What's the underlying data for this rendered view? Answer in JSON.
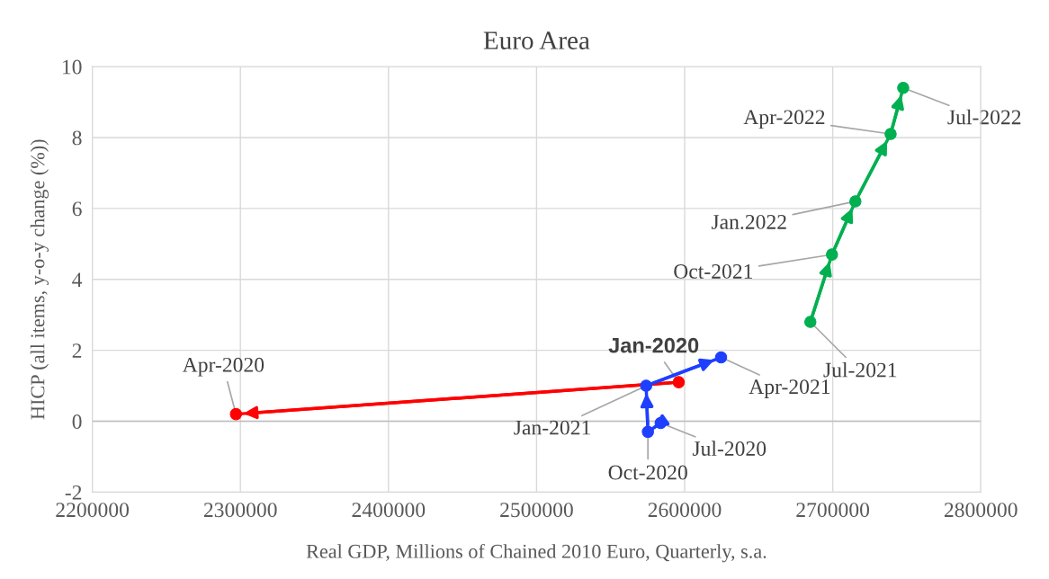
{
  "chart_data": {
    "type": "line",
    "title": "Euro Area",
    "xlabel": "Real GDP, Millions of Chained 2010 Euro, Quarterly, s.a.",
    "ylabel": "HICP (all items, y-o-y change (%))",
    "series": [
      {
        "color": "#ff0000",
        "x": [
          2596000,
          2297000
        ],
        "values": [
          1.1,
          0.2
        ]
      },
      {
        "color": "#1f3fff",
        "x": [
          2583800,
          2575200,
          2574000,
          2624600
        ],
        "values": [
          -0.05,
          -0.3,
          1.0,
          1.8
        ]
      },
      {
        "color": "#00b050",
        "x": [
          2684900,
          2699500,
          2715300,
          2739100,
          2747600
        ],
        "values": [
          2.8,
          4.7,
          6.2,
          8.1,
          9.4
        ]
      }
    ],
    "marker": "circle",
    "xlim": [
      2200000,
      2800000
    ],
    "xticks": [
      2200000,
      2300000,
      2400000,
      2500000,
      2600000,
      2700000,
      2800000
    ],
    "ylim": [
      -2,
      10
    ],
    "yticks": [
      -2,
      0,
      2,
      4,
      6,
      8,
      10
    ],
    "grid": true,
    "annotations": [
      {
        "text": "Jan-2020",
        "x": 2596000,
        "y": 1.1
      },
      {
        "text": "Apr-2020",
        "x": 2297000,
        "y": 0.2
      },
      {
        "text": "Jul-2020",
        "x": 2583800,
        "y": -0.05
      },
      {
        "text": "Oct-2020",
        "x": 2575200,
        "y": -0.3
      },
      {
        "text": "Jan-2021",
        "x": 2574000,
        "y": 1.0
      },
      {
        "text": "Apr-2021",
        "x": 2624600,
        "y": 1.8
      },
      {
        "text": "Jul-2021",
        "x": 2684900,
        "y": 2.8
      },
      {
        "text": "Oct-2021",
        "x": 2699500,
        "y": 4.7
      },
      {
        "text": "Jan.2022",
        "x": 2715300,
        "y": 6.2
      },
      {
        "text": "Apr-2022",
        "x": 2739100,
        "y": 8.1
      },
      {
        "text": "Jul-2022",
        "x": 2747600,
        "y": 9.4
      }
    ]
  }
}
